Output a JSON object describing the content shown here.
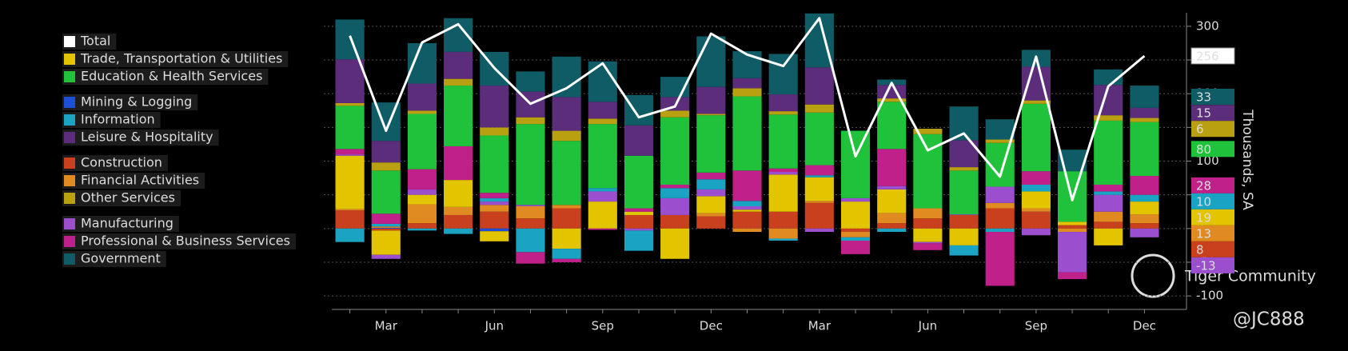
{
  "chart_data": {
    "type": "stacked_bar_line",
    "y_axis_label": "Thousands, SA",
    "watermark": "Tiger Community",
    "handle": "@JC888",
    "categories": [
      null,
      "Mar",
      null,
      null,
      "Jun",
      null,
      null,
      "Sep",
      null,
      null,
      "Dec",
      null,
      null,
      "Mar",
      null,
      null,
      "Jun",
      null,
      null,
      "Sep",
      null,
      null,
      "Dec"
    ],
    "ylim": [
      -120,
      320
    ],
    "yticks": [
      -100,
      -50,
      0,
      50,
      100,
      150,
      200,
      250,
      300
    ],
    "grid": true,
    "legend": "left",
    "series": [
      {
        "name": "Construction",
        "color": "#c8401e",
        "values": [
          27,
          -3,
          8,
          20,
          25,
          15,
          30,
          0,
          20,
          20,
          18,
          25,
          25,
          38,
          -5,
          8,
          15,
          20,
          30,
          25,
          5,
          10,
          8
        ]
      },
      {
        "name": "Mining & Logging",
        "color": "#1f4fd6",
        "end_label": false,
        "values": [
          0,
          1,
          0,
          0,
          -4,
          0,
          0,
          0,
          0,
          0,
          0,
          0,
          0,
          0,
          0,
          0,
          0,
          0,
          0,
          0,
          0,
          0,
          0
        ]
      },
      {
        "name": "Financial Activities",
        "color": "#e08a22",
        "values": [
          2,
          2,
          28,
          12,
          10,
          18,
          5,
          0,
          0,
          0,
          5,
          -5,
          -15,
          3,
          -8,
          15,
          15,
          0,
          8,
          5,
          -5,
          15,
          13
        ]
      },
      {
        "name": "Trade, Transportation & Utilities",
        "color": "#e2c400",
        "values": [
          79,
          -36,
          14,
          40,
          -15,
          0,
          -30,
          40,
          5,
          -45,
          25,
          3,
          55,
          35,
          40,
          35,
          -20,
          -25,
          0,
          25,
          5,
          -25,
          19
        ]
      },
      {
        "name": "Manufacturing",
        "color": "#9b4fcf",
        "values": [
          2,
          -6,
          8,
          0,
          5,
          2,
          0,
          15,
          -3,
          25,
          10,
          5,
          4,
          -5,
          5,
          5,
          -2,
          1,
          24,
          -10,
          -60,
          25,
          -13
        ]
      },
      {
        "name": "Information",
        "color": "#1aa3c2",
        "values": [
          -20,
          4,
          -3,
          -8,
          5,
          -35,
          -15,
          5,
          -30,
          15,
          15,
          8,
          -3,
          3,
          -5,
          -5,
          0,
          -15,
          -5,
          10,
          0,
          5,
          10
        ]
      },
      {
        "name": "Professional & Business Services",
        "color": "#c0208a",
        "values": [
          8,
          15,
          30,
          50,
          8,
          -17,
          -5,
          -2,
          5,
          5,
          10,
          45,
          5,
          15,
          -20,
          55,
          -10,
          0,
          -80,
          20,
          -10,
          10,
          28
        ]
      },
      {
        "name": "Education & Health Services",
        "color": "#1fc23a",
        "values": [
          64,
          64,
          82,
          90,
          85,
          120,
          95,
          95,
          78,
          100,
          85,
          110,
          80,
          78,
          100,
          70,
          110,
          65,
          65,
          100,
          75,
          95,
          80
        ]
      },
      {
        "name": "Other Services",
        "color": "#b8a010",
        "values": [
          4,
          12,
          5,
          10,
          12,
          10,
          15,
          8,
          0,
          10,
          2,
          12,
          5,
          12,
          0,
          5,
          8,
          5,
          5,
          5,
          0,
          8,
          6
        ]
      },
      {
        "name": "Leisure & Hospitality",
        "color": "#5b2d7a",
        "values": [
          65,
          32,
          40,
          40,
          62,
          38,
          50,
          25,
          45,
          20,
          40,
          15,
          25,
          55,
          0,
          20,
          0,
          40,
          0,
          50,
          0,
          45,
          15
        ]
      },
      {
        "name": "Government",
        "color": "#0f5c66",
        "values": [
          59,
          57,
          60,
          50,
          50,
          30,
          60,
          60,
          45,
          30,
          75,
          40,
          60,
          80,
          0,
          8,
          0,
          50,
          30,
          25,
          32,
          23,
          33
        ]
      },
      {
        "name": "Total",
        "color": "#ffffff",
        "style": "line",
        "values": [
          286,
          145,
          276,
          303,
          238,
          185,
          208,
          245,
          165,
          181,
          289,
          258,
          241,
          312,
          107,
          216,
          116,
          141,
          77,
          255,
          42,
          211,
          256
        ]
      }
    ]
  }
}
